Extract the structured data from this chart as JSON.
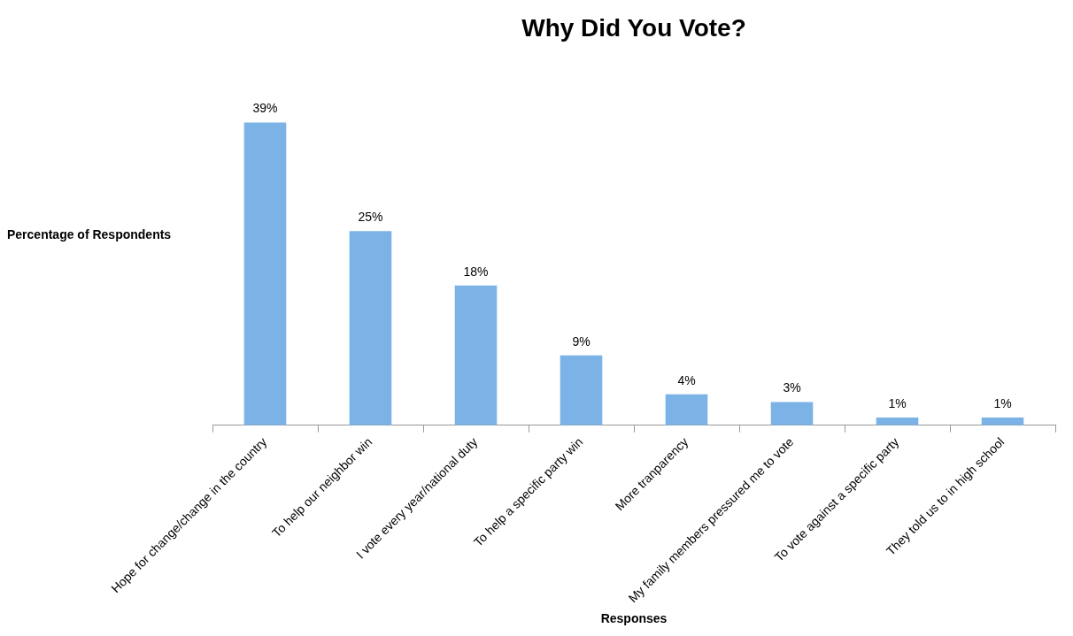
{
  "chart_data": {
    "type": "bar",
    "title": "Why Did You Vote?",
    "xlabel": "Responses",
    "ylabel": "Percentage of Respondents",
    "categories": [
      "Hope for change/change in the country",
      "To help our neighbor win",
      "I vote every year/national duty",
      "To help a specific party win",
      "More tranparency",
      "My family members pressured me to vote",
      "To vote against a specific party",
      "They told us to in high school"
    ],
    "values": [
      39,
      25,
      18,
      9,
      4,
      3,
      1,
      1
    ],
    "value_labels": [
      "39%",
      "25%",
      "18%",
      "9%",
      "4%",
      "3%",
      "1%",
      "1%"
    ],
    "color": "#7cb3e6",
    "grid": false,
    "legend": false
  }
}
